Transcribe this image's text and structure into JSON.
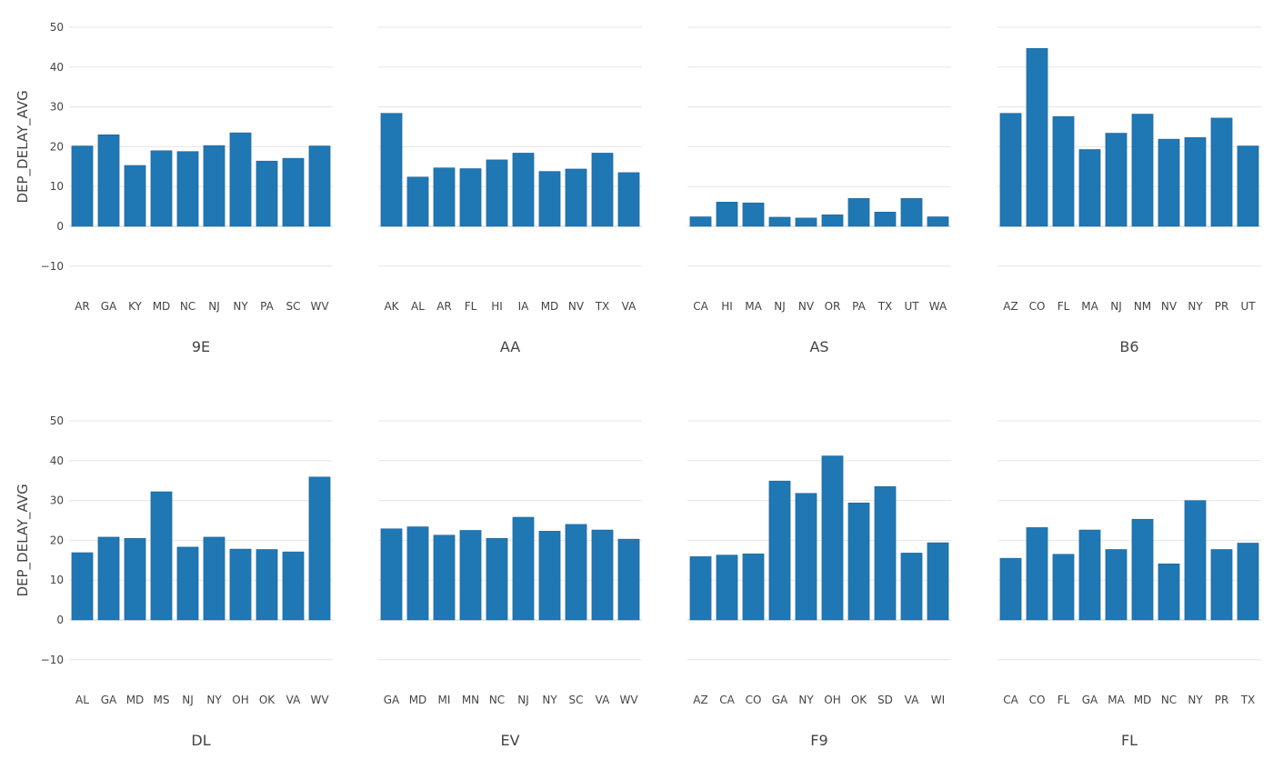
{
  "chart_data": {
    "type": "bar",
    "ylabel": "DEP_DELAY_AVG",
    "ylim": [
      -18,
      50
    ],
    "yticks": [
      50,
      40,
      30,
      20,
      10,
      0,
      -10
    ],
    "yticks_text": [
      "50",
      "40",
      "30",
      "20",
      "10",
      "0",
      "−10"
    ],
    "bar_color": "#1f77b4",
    "grid": true,
    "facets": [
      {
        "name": "9E",
        "categories": [
          "AR",
          "GA",
          "KY",
          "MD",
          "NC",
          "NJ",
          "NY",
          "PA",
          "SC",
          "WV"
        ],
        "values": [
          20.2,
          23.0,
          15.3,
          19.0,
          18.8,
          20.3,
          23.5,
          16.4,
          17.1,
          20.2
        ]
      },
      {
        "name": "AA",
        "categories": [
          "AK",
          "AL",
          "AR",
          "FL",
          "HI",
          "IA",
          "MD",
          "NV",
          "TX",
          "VA"
        ],
        "values": [
          28.4,
          12.4,
          14.7,
          14.5,
          16.7,
          18.4,
          13.8,
          14.4,
          18.4,
          13.5
        ]
      },
      {
        "name": "AS",
        "categories": [
          "CA",
          "HI",
          "MA",
          "NJ",
          "NV",
          "OR",
          "PA",
          "TX",
          "UT",
          "WA"
        ],
        "values": [
          2.4,
          6.1,
          5.9,
          2.3,
          2.1,
          2.9,
          7.0,
          3.6,
          7.0,
          2.4
        ]
      },
      {
        "name": "B6",
        "categories": [
          "AZ",
          "CO",
          "FL",
          "MA",
          "NJ",
          "NM",
          "NV",
          "NY",
          "PR",
          "UT"
        ],
        "values": [
          28.4,
          44.7,
          27.6,
          19.3,
          23.4,
          28.2,
          21.9,
          22.3,
          27.2,
          20.2
        ]
      },
      {
        "name": "DL",
        "categories": [
          "AL",
          "GA",
          "MD",
          "MS",
          "NJ",
          "NY",
          "OH",
          "OK",
          "VA",
          "WV"
        ],
        "values": [
          16.9,
          20.8,
          20.5,
          32.2,
          18.3,
          20.8,
          17.8,
          17.7,
          17.1,
          35.9
        ]
      },
      {
        "name": "EV",
        "categories": [
          "GA",
          "MD",
          "MI",
          "MN",
          "NC",
          "NJ",
          "NY",
          "SC",
          "VA",
          "WV"
        ],
        "values": [
          22.9,
          23.4,
          21.3,
          22.5,
          20.5,
          25.8,
          22.3,
          24.0,
          22.6,
          20.3
        ]
      },
      {
        "name": "F9",
        "categories": [
          "AZ",
          "CA",
          "CO",
          "GA",
          "NY",
          "OH",
          "OK",
          "SD",
          "VA",
          "WI"
        ],
        "values": [
          15.9,
          16.3,
          16.6,
          34.9,
          31.8,
          41.2,
          29.4,
          33.5,
          16.8,
          19.4
        ]
      },
      {
        "name": "FL",
        "categories": [
          "CA",
          "CO",
          "FL",
          "GA",
          "MA",
          "MD",
          "NC",
          "NY",
          "PR",
          "TX"
        ],
        "values": [
          15.5,
          23.2,
          16.5,
          22.6,
          17.7,
          25.3,
          14.1,
          30.0,
          17.7,
          19.3
        ]
      }
    ]
  }
}
